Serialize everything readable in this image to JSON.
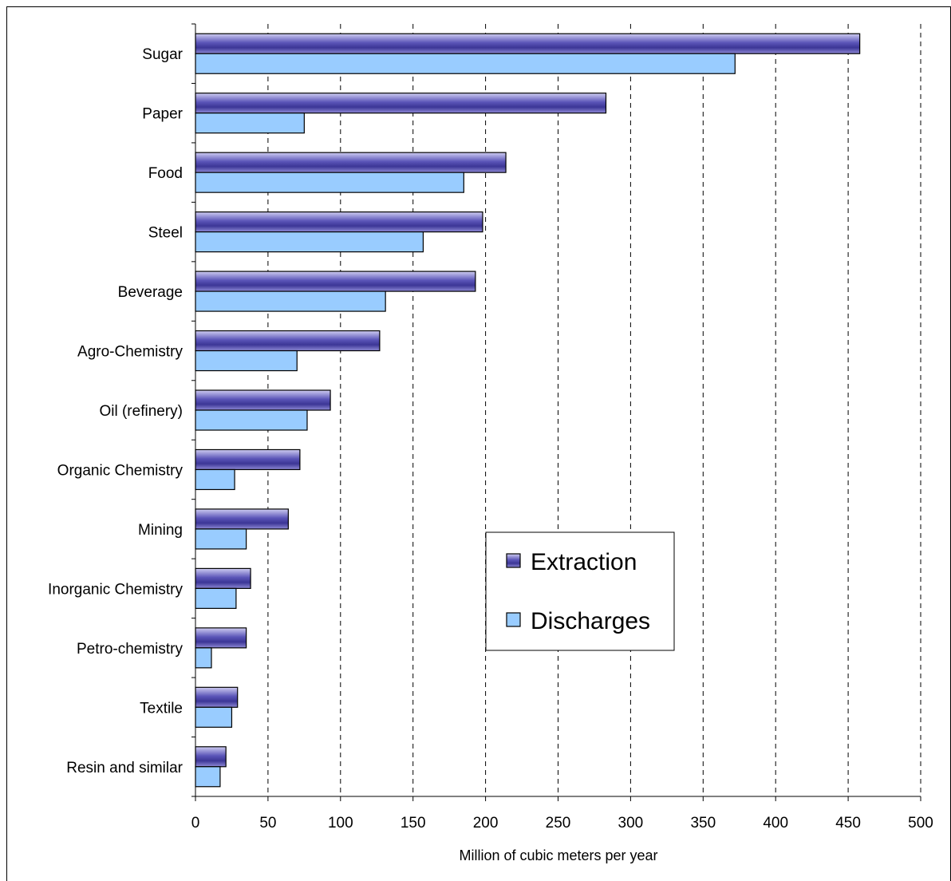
{
  "chart_data": {
    "type": "bar",
    "orientation": "horizontal",
    "categories": [
      "Sugar",
      "Paper",
      "Food",
      "Steel",
      "Beverage",
      "Agro-Chemistry",
      "Oil (refinery)",
      "Organic Chemistry",
      "Mining",
      "Inorganic Chemistry",
      "Petro-chemistry",
      "Textile",
      "Resin and similar"
    ],
    "series": [
      {
        "name": "Extraction",
        "color": "#6c66c4",
        "values": [
          458,
          283,
          214,
          198,
          193,
          127,
          93,
          72,
          64,
          38,
          35,
          29,
          21
        ]
      },
      {
        "name": "Discharges",
        "color": "#99ccff",
        "values": [
          372,
          75,
          185,
          157,
          131,
          70,
          77,
          27,
          35,
          28,
          11,
          25,
          17
        ]
      }
    ],
    "xlabel": "Million of cubic meters per year",
    "ylabel": "",
    "xlim": [
      0,
      500
    ],
    "xticks": [
      "0",
      "50",
      "100",
      "150",
      "200",
      "250",
      "300",
      "350",
      "400",
      "450",
      "500"
    ],
    "grid": "vertical dashed",
    "legend_position": "center-right"
  }
}
